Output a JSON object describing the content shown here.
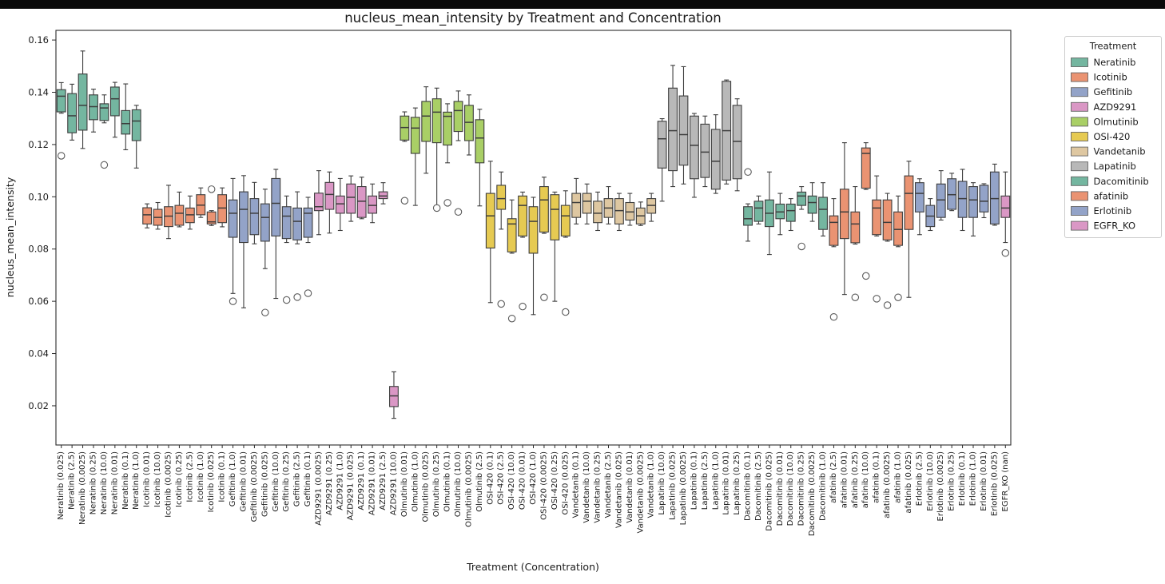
{
  "window": {
    "top_bar_color": "#0a0a0a",
    "background": "#ffffff"
  },
  "chart_data": {
    "type": "box",
    "title": "nucleus_mean_intensity by Treatment and Concentration",
    "xlabel": "Treatment (Concentration)",
    "ylabel": "nucleus_mean_intensity",
    "ylim": [
      0.005,
      0.1637
    ],
    "yticks": [
      0.02,
      0.04,
      0.06,
      0.08,
      0.1,
      0.12,
      0.14,
      0.16
    ],
    "grid": false,
    "edge_color": "#3d3d3d",
    "outlier_stroke": "#5a5a5a",
    "colors": {
      "Neratinib": "#74b6a0",
      "Icotinib": "#ea9372",
      "Gefitinib": "#93a3c8",
      "AZD9291": "#da97c5",
      "Olmutinib": "#a9cf66",
      "OSI-420": "#e6ca52",
      "Vandetanib": "#dec7a1",
      "Lapatinib": "#b8b8b8",
      "Dacomitinib": "#74b6a0",
      "afatinib": "#ea9372",
      "Erlotinib": "#93a3c8",
      "EGFR_KO": "#da97c5"
    },
    "legend": {
      "title": "Treatment",
      "position": "upper right outside",
      "entries": [
        "Neratinib",
        "Icotinib",
        "Gefitinib",
        "AZD9291",
        "Olmutinib",
        "OSI-420",
        "Vandetanib",
        "Lapatinib",
        "Dacomitinib",
        "afatinib",
        "Erlotinib",
        "EGFR_KO"
      ]
    },
    "box_fields": [
      "label",
      "treatment",
      "whisker_low",
      "q1",
      "median",
      "q3",
      "whisker_high",
      "outliers"
    ],
    "boxes": [
      [
        "Neratinib (0.025)",
        "Neratinib",
        0.132,
        0.1325,
        0.1385,
        0.141,
        0.1437,
        [
          0.1157
        ]
      ],
      [
        "Neratinib (2.5)",
        "Neratinib",
        0.1217,
        0.1245,
        0.131,
        0.1395,
        0.1431,
        []
      ],
      [
        "Neratinib (0.0025)",
        "Neratinib",
        0.1185,
        0.1255,
        0.135,
        0.147,
        0.1558,
        []
      ],
      [
        "Neratinib (0.25)",
        "Neratinib",
        0.1248,
        0.1295,
        0.1345,
        0.139,
        0.1412,
        []
      ],
      [
        "Neratinib (10.0)",
        "Neratinib",
        0.1283,
        0.1292,
        0.134,
        0.1356,
        0.139,
        [
          0.1122
        ]
      ],
      [
        "Neratinib (0.01)",
        "Neratinib",
        0.1228,
        0.131,
        0.1375,
        0.142,
        0.1438,
        []
      ],
      [
        "Neratinib (0.1)",
        "Neratinib",
        0.118,
        0.124,
        0.128,
        0.133,
        0.1432,
        []
      ],
      [
        "Neratinib (1.0)",
        "Neratinib",
        0.111,
        0.1215,
        0.129,
        0.1333,
        0.135,
        []
      ],
      [
        "Icotinib (0.01)",
        "Icotinib",
        0.0881,
        0.0896,
        0.0931,
        0.0958,
        0.0973,
        []
      ],
      [
        "Icotinib (10.0)",
        "Icotinib",
        0.0876,
        0.0891,
        0.0921,
        0.0952,
        0.0978,
        []
      ],
      [
        "Icotinib (0.0025)",
        "Icotinib",
        0.084,
        0.0886,
        0.0926,
        0.0962,
        0.1044,
        []
      ],
      [
        "Icotinib (0.25)",
        "Icotinib",
        0.0885,
        0.0891,
        0.0937,
        0.0967,
        0.1018,
        []
      ],
      [
        "Icotinib (2.5)",
        "Icotinib",
        0.0876,
        0.0901,
        0.0931,
        0.0957,
        0.1003,
        []
      ],
      [
        "Icotinib (1.0)",
        "Icotinib",
        0.0921,
        0.0931,
        0.0968,
        0.1008,
        0.1034,
        []
      ],
      [
        "Icotinib (0.025)",
        "Icotinib",
        0.089,
        0.0896,
        0.0904,
        0.0942,
        0.0947,
        [
          0.1029
        ]
      ],
      [
        "Icotinib (0.1)",
        "Icotinib",
        0.0885,
        0.0901,
        0.0957,
        0.1008,
        0.1034,
        []
      ],
      [
        "Gefitinib (1.0)",
        "Gefitinib",
        0.063,
        0.0845,
        0.0937,
        0.0988,
        0.107,
        [
          0.06
        ]
      ],
      [
        "Gefitinib (0.01)",
        "Gefitinib",
        0.0575,
        0.0825,
        0.0952,
        0.1019,
        0.1081,
        []
      ],
      [
        "Gefitinib (0.0025)",
        "Gefitinib",
        0.082,
        0.0855,
        0.0937,
        0.0993,
        0.1055,
        []
      ],
      [
        "Gefitinib (0.025)",
        "Gefitinib",
        0.0725,
        0.083,
        0.0921,
        0.0973,
        0.1029,
        [
          0.0557
        ]
      ],
      [
        "Gefitinib (10.0)",
        "Gefitinib",
        0.0611,
        0.085,
        0.0975,
        0.107,
        0.1105,
        []
      ],
      [
        "Gefitinib (0.25)",
        "Gefitinib",
        0.0825,
        0.084,
        0.0926,
        0.0962,
        0.1003,
        [
          0.0605
        ]
      ],
      [
        "Gefitinib (2.5)",
        "Gefitinib",
        0.082,
        0.0835,
        0.0906,
        0.0957,
        0.1019,
        [
          0.0616
        ]
      ],
      [
        "Gefitinib (0.1)",
        "Gefitinib",
        0.0825,
        0.0845,
        0.0937,
        0.0957,
        0.0998,
        [
          0.0631
        ]
      ],
      [
        "AZD9291 (0.0025)",
        "AZD9291",
        0.0855,
        0.0947,
        0.0962,
        0.1014,
        0.11,
        []
      ],
      [
        "AZD9291 (0.25)",
        "AZD9291",
        0.0861,
        0.0952,
        0.1009,
        0.1055,
        0.1095,
        []
      ],
      [
        "AZD9291 (1.0)",
        "AZD9291",
        0.0871,
        0.0937,
        0.0973,
        0.1003,
        0.107,
        []
      ],
      [
        "AZD9291 (0.025)",
        "AZD9291",
        0.0906,
        0.0937,
        0.0998,
        0.1049,
        0.108,
        []
      ],
      [
        "AZD9291 (0.1)",
        "AZD9291",
        0.0916,
        0.0921,
        0.0983,
        0.1039,
        0.1075,
        []
      ],
      [
        "AZD9291 (0.01)",
        "AZD9291",
        0.0901,
        0.0937,
        0.0967,
        0.1003,
        0.1049,
        []
      ],
      [
        "AZD9291 (2.5)",
        "AZD9291",
        0.0973,
        0.0993,
        0.1003,
        0.1019,
        0.1054,
        []
      ],
      [
        "AZD9291 (10.0)",
        "AZD9291",
        0.0152,
        0.0197,
        0.0238,
        0.0274,
        0.033,
        []
      ],
      [
        "Olmutinib (0.01)",
        "Olmutinib",
        0.1212,
        0.1217,
        0.1265,
        0.1309,
        0.1325,
        [
          0.0985
        ]
      ],
      [
        "Olmutinib (1.0)",
        "Olmutinib",
        0.0967,
        0.1166,
        0.1263,
        0.1304,
        0.134,
        []
      ],
      [
        "Olmutinib (0.025)",
        "Olmutinib",
        0.109,
        0.1212,
        0.1309,
        0.1365,
        0.1421,
        []
      ],
      [
        "Olmutinib (0.25)",
        "Olmutinib",
        0.0967,
        0.1207,
        0.1324,
        0.1375,
        0.1416,
        [
          0.0957
        ]
      ],
      [
        "Olmutinib (0.1)",
        "Olmutinib",
        0.113,
        0.1198,
        0.1308,
        0.1324,
        0.1356,
        [
          0.0977
        ]
      ],
      [
        "Olmutinib (10.0)",
        "Olmutinib",
        0.1215,
        0.125,
        0.133,
        0.1365,
        0.1405,
        [
          0.0942
        ]
      ],
      [
        "Olmutinib (0.0025)",
        "Olmutinib",
        0.116,
        0.1215,
        0.1285,
        0.135,
        0.139,
        []
      ],
      [
        "Olmutinib (2.5)",
        "Olmutinib",
        0.0965,
        0.113,
        0.1225,
        0.1295,
        0.1335,
        []
      ],
      [
        "OSI-420 (0.1)",
        "OSI-420",
        0.0595,
        0.0804,
        0.0927,
        0.1013,
        0.1136,
        []
      ],
      [
        "OSI-420 (2.5)",
        "OSI-420",
        0.0876,
        0.0952,
        0.0993,
        0.1044,
        0.1095,
        [
          0.059
        ]
      ],
      [
        "OSI-420 (10.0)",
        "OSI-420",
        0.0784,
        0.0789,
        0.0896,
        0.0916,
        0.0988,
        [
          0.0534
        ]
      ],
      [
        "OSI-420 (0.01)",
        "OSI-420",
        0.0845,
        0.085,
        0.0967,
        0.1003,
        0.1018,
        [
          0.058
        ]
      ],
      [
        "OSI-420 (1.0)",
        "OSI-420",
        0.0549,
        0.0784,
        0.0906,
        0.0962,
        0.0998,
        []
      ],
      [
        "OSI-420 (0.0025)",
        "OSI-420",
        0.086,
        0.0865,
        0.0988,
        0.1039,
        0.1075,
        [
          0.0615
        ]
      ],
      [
        "OSI-420 (0.25)",
        "OSI-420",
        0.06,
        0.0835,
        0.0952,
        0.1008,
        0.1018,
        []
      ],
      [
        "OSI-420 (0.025)",
        "OSI-420",
        0.0845,
        0.085,
        0.0927,
        0.0967,
        0.1023,
        [
          0.0559
        ]
      ],
      [
        "Vandetanib (0.1)",
        "Vandetanib",
        0.0896,
        0.0921,
        0.0978,
        0.1013,
        0.107,
        []
      ],
      [
        "Vandetanib (10.0)",
        "Vandetanib",
        0.0896,
        0.0937,
        0.0983,
        0.1013,
        0.1049,
        []
      ],
      [
        "Vandetanib (0.25)",
        "Vandetanib",
        0.0871,
        0.0901,
        0.0937,
        0.0983,
        0.1018,
        []
      ],
      [
        "Vandetanib (2.5)",
        "Vandetanib",
        0.0896,
        0.0921,
        0.0957,
        0.0993,
        0.1039,
        []
      ],
      [
        "Vandetanib (0.025)",
        "Vandetanib",
        0.0871,
        0.0896,
        0.0947,
        0.0993,
        0.1013,
        []
      ],
      [
        "Vandetanib (0.01)",
        "Vandetanib",
        0.0891,
        0.0911,
        0.0942,
        0.0978,
        0.1013,
        []
      ],
      [
        "Vandetanib (0.0025)",
        "Vandetanib",
        0.089,
        0.0896,
        0.0927,
        0.0957,
        0.098,
        []
      ],
      [
        "Vandetanib (1.0)",
        "Vandetanib",
        0.0906,
        0.0937,
        0.0967,
        0.0993,
        0.1013,
        []
      ],
      [
        "Lapatinib (10.0)",
        "Lapatinib",
        0.0983,
        0.111,
        0.1222,
        0.1289,
        0.1299,
        []
      ],
      [
        "Lapatinib (0.025)",
        "Lapatinib",
        0.1039,
        0.11,
        0.1253,
        0.1416,
        0.1503,
        []
      ],
      [
        "Lapatinib (0.0025)",
        "Lapatinib",
        0.1049,
        0.1121,
        0.1238,
        0.1386,
        0.1498,
        []
      ],
      [
        "Lapatinib (0.1)",
        "Lapatinib",
        0.0998,
        0.1069,
        0.1197,
        0.1309,
        0.1319,
        []
      ],
      [
        "Lapatinib (2.5)",
        "Lapatinib",
        0.1039,
        0.1074,
        0.1171,
        0.1278,
        0.1309,
        []
      ],
      [
        "Lapatinib (1.0)",
        "Lapatinib",
        0.1013,
        0.1029,
        0.1136,
        0.1258,
        0.1314,
        []
      ],
      [
        "Lapatinib (0.01)",
        "Lapatinib",
        0.1049,
        0.1064,
        0.1253,
        0.1442,
        0.1447,
        []
      ],
      [
        "Lapatinib (0.25)",
        "Lapatinib",
        0.1023,
        0.1069,
        0.1212,
        0.135,
        0.1375,
        []
      ],
      [
        "Dacomitinib (0.1)",
        "Dacomitinib",
        0.083,
        0.0891,
        0.0916,
        0.0962,
        0.0973,
        [
          0.1095
        ]
      ],
      [
        "Dacomitinib (2.5)",
        "Dacomitinib",
        0.0896,
        0.0906,
        0.0957,
        0.0983,
        0.1003,
        []
      ],
      [
        "Dacomitinib (0.025)",
        "Dacomitinib",
        0.0779,
        0.0886,
        0.0937,
        0.0988,
        0.1095,
        []
      ],
      [
        "Dacomitinib (0.01)",
        "Dacomitinib",
        0.0855,
        0.0916,
        0.0942,
        0.0972,
        0.1013,
        []
      ],
      [
        "Dacomitinib (10.0)",
        "Dacomitinib",
        0.0871,
        0.0906,
        0.0947,
        0.0972,
        0.0993,
        []
      ],
      [
        "Dacomitinib (0.25)",
        "Dacomitinib",
        0.0952,
        0.0967,
        0.1003,
        0.1018,
        0.1039,
        [
          0.081
        ]
      ],
      [
        "Dacomitinib (0.0025)",
        "Dacomitinib",
        0.0906,
        0.0937,
        0.0978,
        0.1003,
        0.1054,
        []
      ],
      [
        "Dacomitinib (1.0)",
        "Dacomitinib",
        0.085,
        0.0875,
        0.0952,
        0.0998,
        0.1054,
        []
      ],
      [
        "afatinib (2.5)",
        "afatinib",
        0.0809,
        0.0814,
        0.0902,
        0.0927,
        0.0993,
        [
          0.054
        ]
      ],
      [
        "afatinib (0.01)",
        "afatinib",
        0.0626,
        0.084,
        0.0942,
        0.1029,
        0.1207,
        []
      ],
      [
        "afatinib (0.25)",
        "afatinib",
        0.0819,
        0.0824,
        0.0896,
        0.0942,
        0.1039,
        [
          0.0615
        ]
      ],
      [
        "afatinib (10.0)",
        "afatinib",
        0.1028,
        0.1033,
        0.1166,
        0.1187,
        0.1207,
        [
          0.0697
        ]
      ],
      [
        "afatinib (0.1)",
        "afatinib",
        0.085,
        0.0855,
        0.0957,
        0.0988,
        0.108,
        [
          0.061
        ]
      ],
      [
        "afatinib (0.0025)",
        "afatinib",
        0.083,
        0.0835,
        0.0902,
        0.0988,
        0.1013,
        [
          0.0585
        ]
      ],
      [
        "afatinib (1.0)",
        "afatinib",
        0.0809,
        0.0814,
        0.0875,
        0.0942,
        0.1003,
        [
          0.0615
        ]
      ],
      [
        "afatinib (0.025)",
        "afatinib",
        0.0615,
        0.0875,
        0.1013,
        0.108,
        0.1136,
        []
      ],
      [
        "Erlotinib (2.5)",
        "Erlotinib",
        0.0855,
        0.0942,
        0.1013,
        0.1054,
        0.1069,
        []
      ],
      [
        "Erlotinib (10.0)",
        "Erlotinib",
        0.0871,
        0.0886,
        0.0926,
        0.0967,
        0.0993,
        []
      ],
      [
        "Erlotinib (0.0025)",
        "Erlotinib",
        0.0911,
        0.0921,
        0.0988,
        0.1049,
        0.11,
        []
      ],
      [
        "Erlotinib (0.25)",
        "Erlotinib",
        0.0947,
        0.0952,
        0.1008,
        0.1069,
        0.109,
        []
      ],
      [
        "Erlotinib (0.1)",
        "Erlotinib",
        0.0871,
        0.0921,
        0.0993,
        0.1059,
        0.1105,
        []
      ],
      [
        "Erlotinib (1.0)",
        "Erlotinib",
        0.085,
        0.0921,
        0.0988,
        0.1039,
        0.1054,
        []
      ],
      [
        "Erlotinib (0.01)",
        "Erlotinib",
        0.092,
        0.0942,
        0.0983,
        0.1044,
        0.105,
        []
      ],
      [
        "Erlotinib (0.025)",
        "Erlotinib",
        0.0891,
        0.0896,
        0.0993,
        0.1095,
        0.1125,
        []
      ],
      [
        "EGFR_KO (nan)",
        "EGFR_KO",
        0.0825,
        0.0921,
        0.0957,
        0.1003,
        0.1095,
        [
          0.0785
        ]
      ]
    ]
  }
}
